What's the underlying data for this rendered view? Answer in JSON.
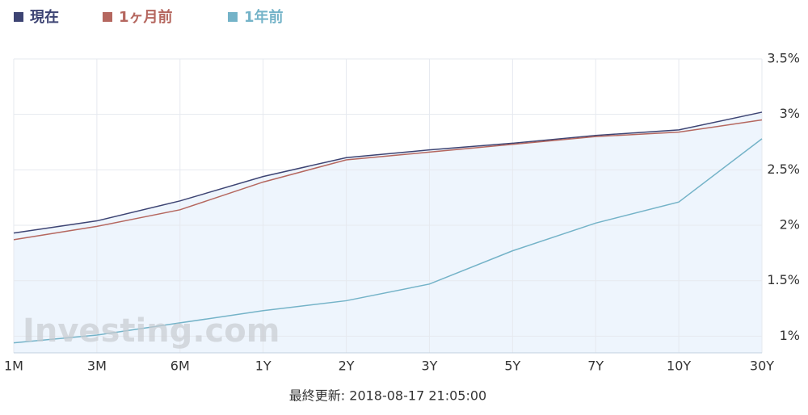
{
  "chart_data": {
    "type": "line",
    "categories": [
      "1M",
      "3M",
      "6M",
      "1Y",
      "2Y",
      "3Y",
      "5Y",
      "7Y",
      "10Y",
      "30Y"
    ],
    "series": [
      {
        "name": "現在",
        "color": "#3d4473",
        "values": [
          1.93,
          2.04,
          2.22,
          2.44,
          2.61,
          2.68,
          2.74,
          2.81,
          2.86,
          3.02
        ]
      },
      {
        "name": "1ヶ月前",
        "color": "#b5675f",
        "values": [
          1.87,
          1.99,
          2.14,
          2.39,
          2.59,
          2.66,
          2.73,
          2.8,
          2.84,
          2.95
        ]
      },
      {
        "name": "1年前",
        "color": "#74b3c8",
        "values": [
          0.94,
          1.01,
          1.12,
          1.23,
          1.32,
          1.47,
          1.77,
          2.02,
          2.21,
          2.78
        ]
      }
    ],
    "ylim": [
      0.85,
      3.5
    ],
    "yticks": [
      {
        "value": 1,
        "label": "1%"
      },
      {
        "value": 1.5,
        "label": "1.5%"
      },
      {
        "value": 2,
        "label": "2%"
      },
      {
        "value": 2.5,
        "label": "2.5%"
      },
      {
        "value": 3,
        "label": "3%"
      },
      {
        "value": 3.5,
        "label": "3.5%"
      }
    ],
    "grid": true,
    "area_fill": "#eef5fd",
    "watermark": "Investing.com",
    "footer": "最終更新: 2018-08-17 21:05:00"
  }
}
